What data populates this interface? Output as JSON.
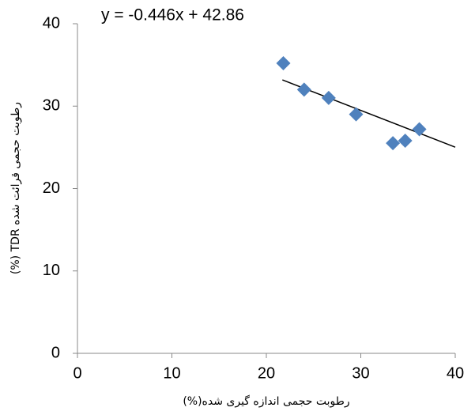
{
  "chart_data": {
    "type": "scatter",
    "x_label": "رطوبت حجمی اندازه گیری شده(%)",
    "y_label": "رطوبت حجمی قرائت شده TDR (%)",
    "series": [
      {
        "color": "#4f81bd",
        "x": [
          21.8,
          24.0,
          26.6,
          29.5,
          33.4,
          34.7,
          36.2
        ],
        "values": [
          35.2,
          32.0,
          31.0,
          29.0,
          25.5,
          25.8,
          27.2
        ]
      }
    ],
    "trendline": {
      "label": "y = -0.446x + 42.86",
      "slope": -0.446,
      "intercept": 42.86,
      "x_range": [
        21.7,
        40
      ],
      "color": "#000000"
    },
    "xlim": [
      0,
      40
    ],
    "xticks": [
      0,
      10,
      20,
      30,
      40
    ],
    "ylim": [
      0,
      40
    ],
    "yticks": [
      0,
      10,
      20,
      30,
      40
    ],
    "grid": false
  }
}
